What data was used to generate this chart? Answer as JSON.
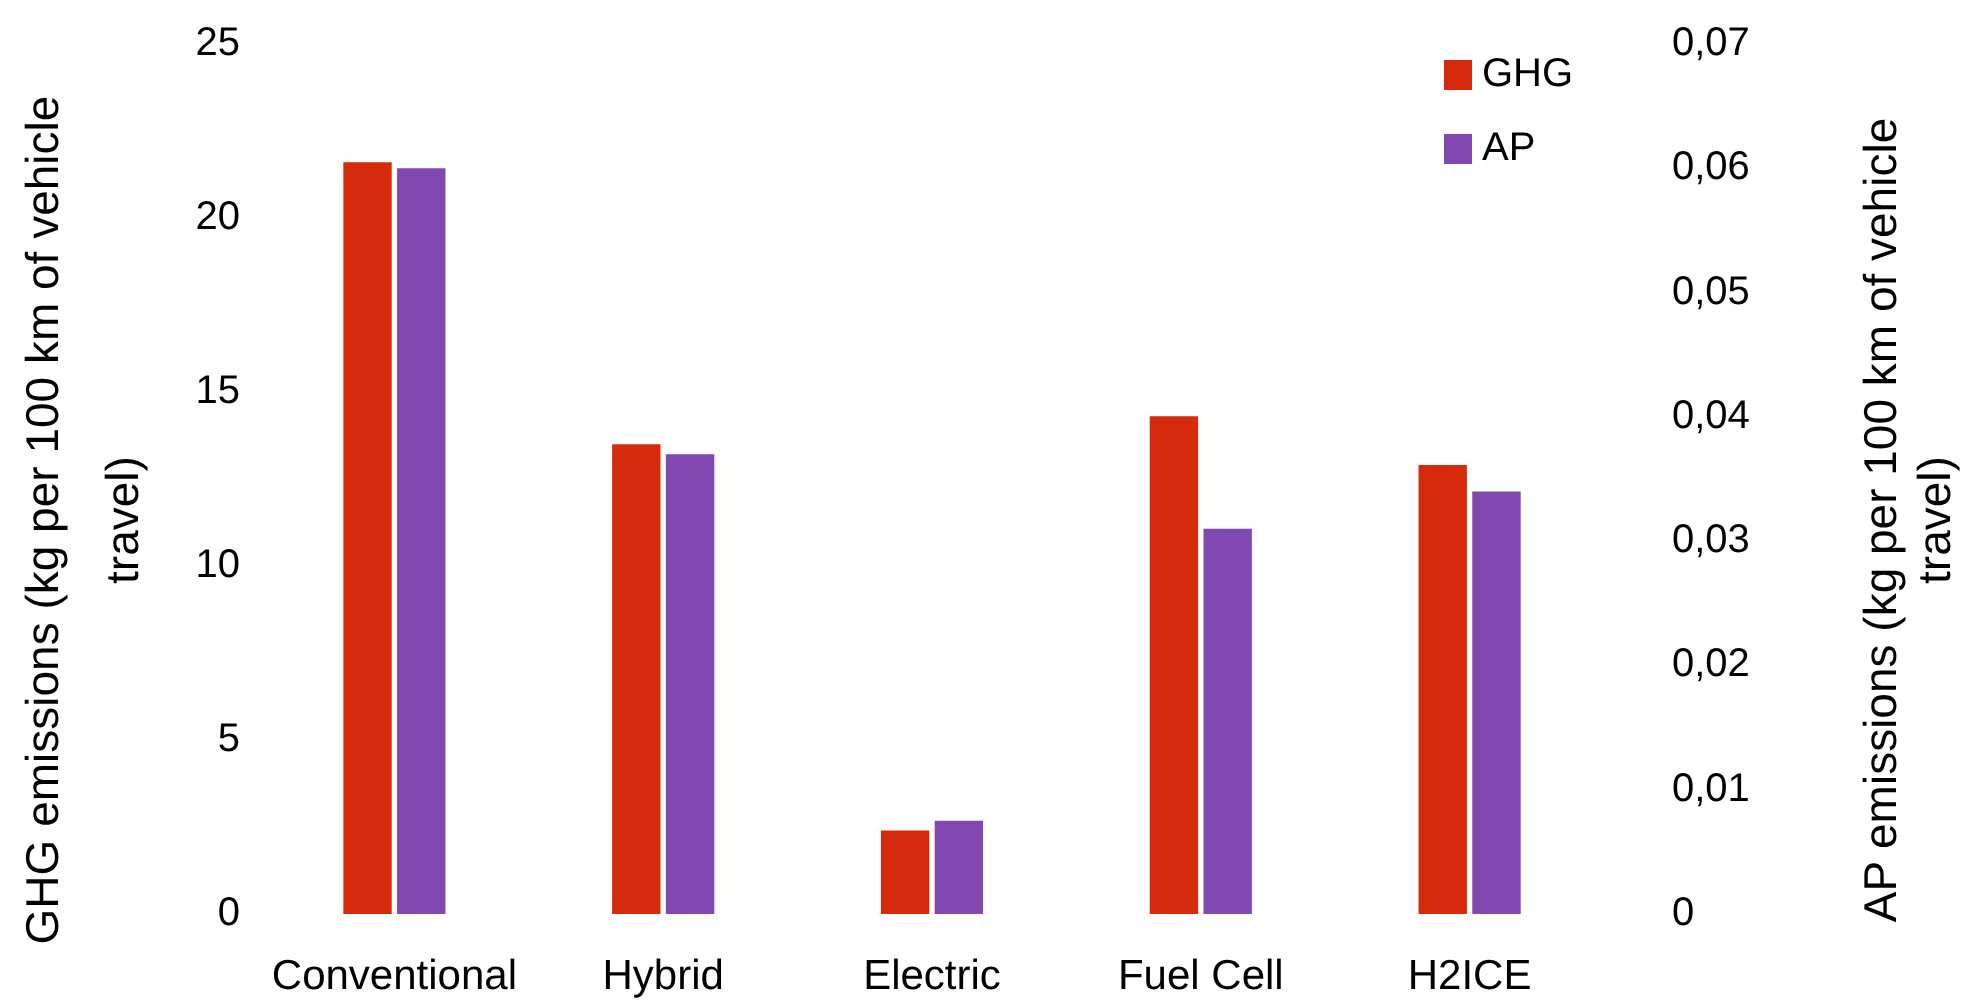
{
  "chart_data": {
    "type": "bar",
    "categories": [
      "Conventional",
      "Hybrid",
      "Electric",
      "Fuel Cell",
      "H2ICE"
    ],
    "series": [
      {
        "name": "GHG",
        "color": "#d52b0c",
        "values": [
          21.6,
          13.5,
          2.4,
          14.3,
          12.9
        ]
      },
      {
        "name": "AP",
        "color": "#8048b0",
        "axis": "y2",
        "values": [
          0.06,
          0.037,
          0.0075,
          0.031,
          0.034
        ]
      }
    ],
    "ylabel": "GHG emissions (kg per 100 km of vehicle travel)",
    "y2label": "AP emissions (kg per 100 km of vehicle travel)",
    "ylim": [
      0,
      25
    ],
    "yticks": [
      0,
      5,
      10,
      15,
      20,
      25
    ],
    "y2lim": [
      0,
      0.07
    ],
    "y2ticks": [
      0,
      {
        "value": 0.01,
        "label": "0,01"
      },
      {
        "value": 0.02,
        "label": "0,02"
      },
      {
        "value": 0.03,
        "label": "0,03"
      },
      {
        "value": 0.04,
        "label": "0,04"
      },
      {
        "value": 0.05,
        "label": "0,05"
      },
      {
        "value": 0.06,
        "label": "0,06"
      },
      {
        "value": 0.07,
        "label": "0,07"
      }
    ],
    "legend": "top right"
  }
}
